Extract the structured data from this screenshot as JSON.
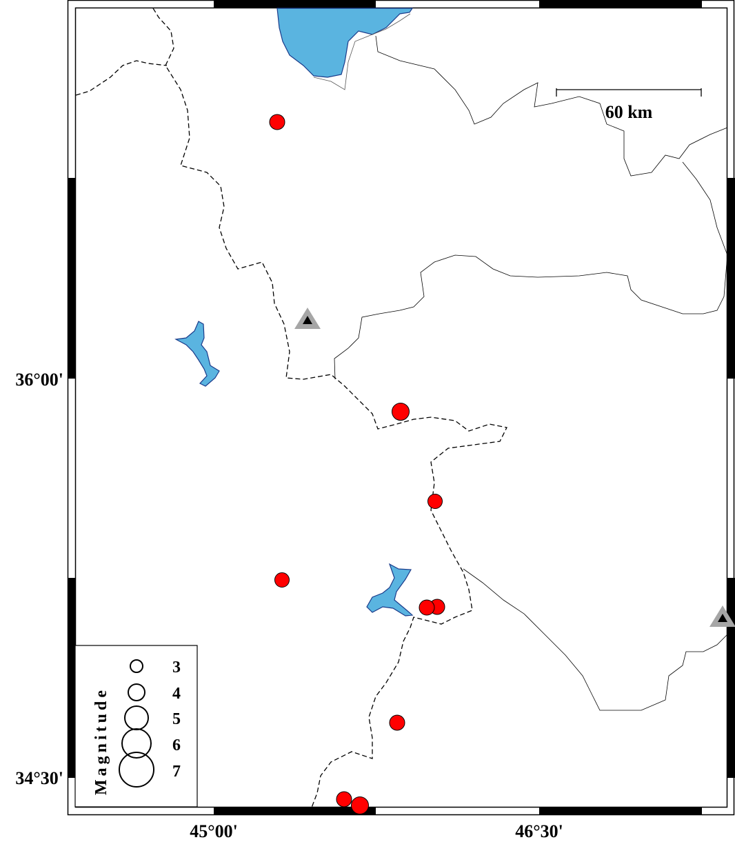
{
  "map": {
    "lat_labels": [
      "36°00'",
      "34°30'"
    ],
    "lon_labels": [
      "45°00'",
      "46°30'"
    ],
    "scale_bar": {
      "label": "60 km"
    },
    "colors": {
      "water": "#5ab4e0",
      "event": "#ff0000",
      "station": "#a6a6a6"
    },
    "legend": {
      "title": "Magnitude",
      "entries": [
        "3",
        "4",
        "5",
        "6",
        "7"
      ]
    },
    "events": [
      {
        "id": "e1",
        "magnitude_class": "small"
      },
      {
        "id": "e2",
        "magnitude_class": "medium"
      },
      {
        "id": "e3",
        "magnitude_class": "small"
      },
      {
        "id": "e4",
        "magnitude_class": "small"
      },
      {
        "id": "e5",
        "magnitude_class": "small"
      },
      {
        "id": "e6",
        "magnitude_class": "small"
      },
      {
        "id": "e7",
        "magnitude_class": "small"
      },
      {
        "id": "e8",
        "magnitude_class": "small"
      },
      {
        "id": "e9",
        "magnitude_class": "medium"
      }
    ],
    "stations": [
      "s1",
      "s2"
    ]
  }
}
